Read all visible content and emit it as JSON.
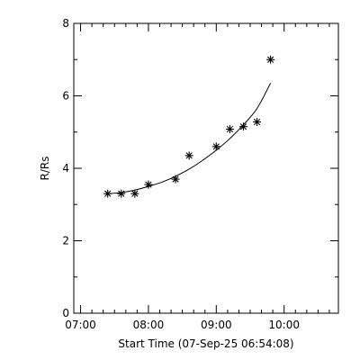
{
  "chart_data": {
    "type": "scatter",
    "xlabel": "Start Time (07-Sep-25 06:54:08)",
    "ylabel": "R/Rs",
    "x_ticks": [
      "07:00",
      "08:00",
      "09:00",
      "10:00"
    ],
    "y_ticks": [
      "0",
      "2",
      "4",
      "6",
      "8"
    ],
    "xlim": [
      "06:54",
      "10:48"
    ],
    "ylim": [
      0,
      8
    ],
    "grid": false,
    "series": [
      {
        "marker": "asterisk",
        "x": [
          "07:24",
          "07:36",
          "07:48",
          "08:00",
          "08:24",
          "08:36",
          "09:00",
          "09:12",
          "09:24",
          "09:36",
          "09:48"
        ],
        "y": [
          3.3,
          3.3,
          3.3,
          3.55,
          3.7,
          4.35,
          4.6,
          5.08,
          5.15,
          5.28,
          7.0
        ]
      }
    ],
    "fit": {
      "style": "solid",
      "x": [
        "07:24",
        "07:36",
        "07:48",
        "08:00",
        "08:12",
        "08:24",
        "08:36",
        "08:48",
        "09:00",
        "09:12",
        "09:24",
        "09:36",
        "09:48"
      ],
      "y": [
        3.3,
        3.33,
        3.4,
        3.5,
        3.62,
        3.78,
        3.98,
        4.22,
        4.5,
        4.82,
        5.2,
        5.65,
        6.35
      ]
    }
  }
}
